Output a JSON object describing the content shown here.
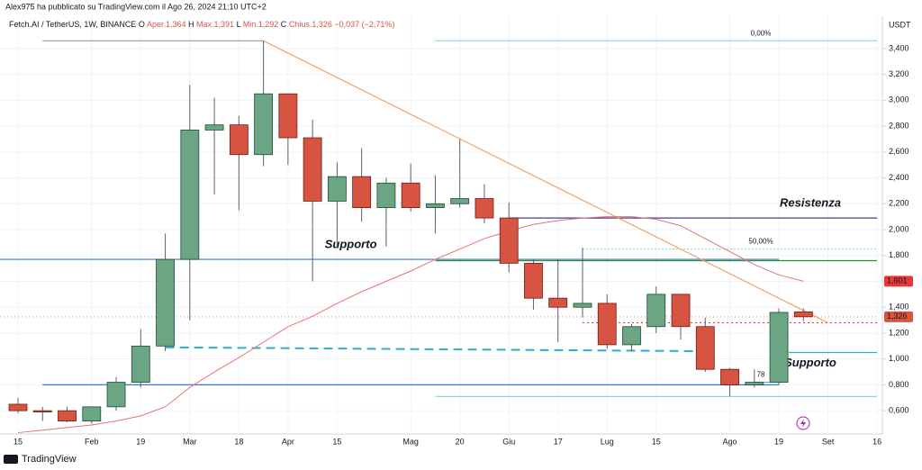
{
  "header": {
    "published": "Alex975 ha pubblicato su TradingView.com il Ago 26, 2024 21:10 UTC+2",
    "symbol": "Fetch.AI / TetherUS, 1W, BINANCE",
    "ohlc": [
      "O",
      "Aper.1,364",
      "H",
      "Max.1,391",
      "L",
      "Min.1,292",
      "C",
      "Chius.1,326",
      "−0,037 (−2,71%)"
    ]
  },
  "footer": {
    "brand": "TradingView"
  },
  "chart_data": {
    "type": "candlestick",
    "y_axis_label": "USDT",
    "categories": [
      "15",
      null,
      null,
      "Feb",
      null,
      "19",
      null,
      "Mar",
      null,
      "18",
      null,
      "Apr",
      null,
      "15",
      null,
      null,
      "Mag",
      null,
      "20",
      null,
      "Giu",
      null,
      "17",
      null,
      "Lug",
      null,
      "15",
      null,
      null,
      "Ago",
      null,
      "19",
      null,
      "Set",
      null,
      "16"
    ],
    "open": [
      0.65,
      0.6,
      0.6,
      0.52,
      0.63,
      0.82,
      1.1,
      1.77,
      2.77,
      2.81,
      2.58,
      3.05,
      2.71,
      2.22,
      2.41,
      2.17,
      2.36,
      2.17,
      2.2,
      2.24,
      2.09,
      1.74,
      1.47,
      1.4,
      1.43,
      1.11,
      1.25,
      1.5,
      1.25,
      0.92,
      0.8,
      0.82,
      1.364,
      null,
      null,
      null
    ],
    "high": [
      0.7,
      0.63,
      0.63,
      0.63,
      0.86,
      1.23,
      1.97,
      3.12,
      3.02,
      2.88,
      3.46,
      3.05,
      2.85,
      2.52,
      2.63,
      2.4,
      2.51,
      2.42,
      2.7,
      2.35,
      2.21,
      1.77,
      1.77,
      1.86,
      1.5,
      1.27,
      1.56,
      1.5,
      1.32,
      0.93,
      0.92,
      1.39,
      1.391,
      null,
      null,
      null
    ],
    "low": [
      0.58,
      0.52,
      0.51,
      0.5,
      0.6,
      0.78,
      1.06,
      1.3,
      2.27,
      2.15,
      2.49,
      2.5,
      1.6,
      1.86,
      2.06,
      1.87,
      2.14,
      1.97,
      2.17,
      2.05,
      1.67,
      1.38,
      1.13,
      1.32,
      1.08,
      1.06,
      1.2,
      1.15,
      0.9,
      0.71,
      0.78,
      0.8,
      1.292,
      null,
      null,
      null
    ],
    "close": [
      0.6,
      0.59,
      0.52,
      0.63,
      0.82,
      1.1,
      1.77,
      2.77,
      2.81,
      2.58,
      3.05,
      2.71,
      2.22,
      2.41,
      2.17,
      2.36,
      2.17,
      2.2,
      2.24,
      2.09,
      1.74,
      1.47,
      1.4,
      1.43,
      1.11,
      1.25,
      1.5,
      1.25,
      0.92,
      0.8,
      0.82,
      1.36,
      1.326,
      null,
      null,
      null
    ],
    "close_value_labels": [
      null,
      null,
      null,
      null,
      null,
      null,
      null,
      null,
      null,
      null,
      null,
      null,
      null,
      null,
      null,
      null,
      null,
      null,
      null,
      null,
      null,
      null,
      null,
      null,
      null,
      null,
      null,
      null,
      null,
      null,
      null,
      null,
      "1,326",
      null,
      null,
      null
    ],
    "up_color": "#6ba583",
    "down_color": "#d75442",
    "ma": {
      "color": "#e57373",
      "values": [
        0.43,
        0.45,
        0.47,
        0.49,
        0.52,
        0.56,
        0.63,
        0.78,
        0.9,
        1.01,
        1.13,
        1.25,
        1.33,
        1.43,
        1.52,
        1.6,
        1.68,
        1.77,
        1.85,
        1.93,
        1.99,
        2.04,
        2.07,
        2.09,
        2.1,
        2.1,
        2.08,
        2.03,
        1.93,
        1.83,
        1.73,
        1.65,
        1.601,
        null,
        null,
        null
      ],
      "value_labels": [
        null,
        null,
        null,
        null,
        null,
        null,
        null,
        null,
        null,
        null,
        null,
        null,
        null,
        null,
        null,
        null,
        null,
        null,
        null,
        null,
        null,
        null,
        null,
        null,
        null,
        null,
        null,
        null,
        null,
        null,
        null,
        null,
        "1,601",
        null,
        null,
        null
      ]
    },
    "ylim": [
      0.42,
      3.65
    ],
    "yticks": [
      {
        "value": 0.6,
        "label": "0,600"
      },
      {
        "value": 0.8,
        "label": "0,800"
      },
      {
        "value": 1.0,
        "label": "1,000"
      },
      {
        "value": 1.2,
        "label": "1,200"
      },
      {
        "value": 1.4,
        "label": "1,400"
      },
      {
        "value": 1.6,
        "label": "1,600"
      },
      {
        "value": 1.8,
        "label": "1,800"
      },
      {
        "value": 2.0,
        "label": "2,000"
      },
      {
        "value": 2.2,
        "label": "2,200"
      },
      {
        "value": 2.4,
        "label": "2,400"
      },
      {
        "value": 2.6,
        "label": "2,600"
      },
      {
        "value": 2.8,
        "label": "2,800"
      },
      {
        "value": 3.0,
        "label": "3,000"
      },
      {
        "value": 3.2,
        "label": "3,200"
      },
      {
        "value": 3.4,
        "label": "3,400"
      }
    ],
    "grid": true,
    "drawings": [
      {
        "type": "hline",
        "price": 3.46,
        "from": 1,
        "to": 10,
        "color": "#9e9e9e",
        "dash": "none"
      },
      {
        "type": "hline",
        "price": 3.46,
        "from": 17,
        "to": 35,
        "color": "#8fd6e3",
        "dash": "none",
        "label": "0,00%"
      },
      {
        "type": "hline",
        "price": 1.85,
        "from": 23,
        "to": 35,
        "color": "#8fd6e3",
        "dash": "2 2",
        "label": "50,00%"
      },
      {
        "type": "hline",
        "price": 0.71,
        "from": 17,
        "to": 35,
        "color": "#8fd6e3",
        "dash": "none"
      },
      {
        "type": "hline",
        "price": 0.82,
        "from": 30,
        "to": 31.2,
        "color": "#4fb3cc",
        "dash": "none",
        "label": "78"
      },
      {
        "type": "hline",
        "price": 2.09,
        "from": 20,
        "to": 35,
        "color": "#4a3a8c",
        "dash": "none",
        "label": "Resistenza",
        "label_color": "#7b2d8e",
        "big": true
      },
      {
        "type": "hline",
        "price": 1.77,
        "from": -1,
        "to": 31,
        "color": "#3a78c8",
        "dash": "none",
        "label": "Supporto",
        "label_color": "#3a78c8",
        "big": true,
        "label_at": 12.5
      },
      {
        "type": "hline",
        "price": 1.76,
        "from": 17,
        "to": 35,
        "color": "#2e8b3e",
        "dash": "none"
      },
      {
        "type": "hline",
        "price": 0.8,
        "from": 1,
        "to": 31,
        "color": "#3a78c8",
        "dash": "none"
      },
      {
        "type": "hline",
        "price": 1.05,
        "from": 31.4,
        "to": 35,
        "color": "#26b4cc",
        "dash": "none",
        "label": "Supporto",
        "label_color": "#26b4cc",
        "big": true,
        "below": true
      },
      {
        "type": "hline",
        "price": 1.28,
        "from": 23,
        "to": 35,
        "color": "#e53935",
        "dash": "2 3"
      },
      {
        "type": "hline",
        "price": 1.326,
        "from": -1,
        "to": 35,
        "color": "#ef9a9a",
        "dash": "1 3"
      },
      {
        "type": "segment",
        "price": [
          1.09,
          1.06
        ],
        "from": 6,
        "to": 28,
        "color": "#26b4cc",
        "dash": "10 6"
      },
      {
        "type": "segment",
        "price": [
          3.46,
          1.28
        ],
        "from": 10,
        "to": 33,
        "color": "#f4a261",
        "dash": "none"
      }
    ]
  }
}
